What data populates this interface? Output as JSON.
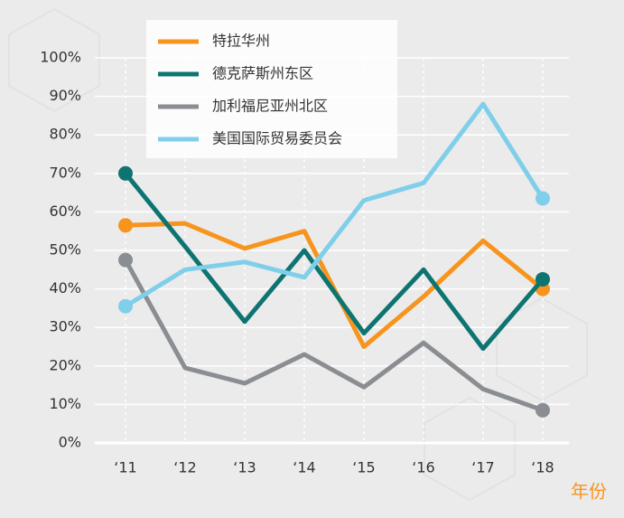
{
  "chart_data": {
    "type": "line",
    "x_label": "年份",
    "categories": [
      "‘11",
      "‘12",
      "‘13",
      "‘14",
      "‘15",
      "‘16",
      "‘17",
      "‘18"
    ],
    "series": [
      {
        "name": "特拉华州",
        "color": "#f7941d",
        "values": [
          56.5,
          57,
          50.5,
          55,
          25,
          38,
          52.5,
          40
        ]
      },
      {
        "name": "德克萨斯州东区",
        "color": "#0e7471",
        "values": [
          70,
          51,
          31.5,
          50,
          28.5,
          45,
          24.5,
          42.5
        ]
      },
      {
        "name": "加利福尼亚州北区",
        "color": "#8a8d91",
        "values": [
          47.5,
          19.5,
          15.5,
          23,
          14.5,
          26,
          14,
          8.5
        ]
      },
      {
        "name": "美国国际贸易委员会",
        "color": "#7fcfea",
        "values": [
          35.5,
          45,
          47,
          43,
          63,
          67.5,
          88,
          63.5
        ]
      }
    ],
    "ylim": [
      0,
      100
    ],
    "yticks": [
      {
        "value": 0,
        "label": "0%"
      },
      {
        "value": 10,
        "label": "10%"
      },
      {
        "value": 20,
        "label": "20%"
      },
      {
        "value": 30,
        "label": "30%"
      },
      {
        "value": 40,
        "label": "40%"
      },
      {
        "value": 50,
        "label": "50%"
      },
      {
        "value": 60,
        "label": "60%"
      },
      {
        "value": 70,
        "label": "70%"
      },
      {
        "value": 80,
        "label": "80%"
      },
      {
        "value": 90,
        "label": "90%"
      },
      {
        "value": 100,
        "label": "100%"
      }
    ],
    "grid": true,
    "legend": "top-left"
  }
}
